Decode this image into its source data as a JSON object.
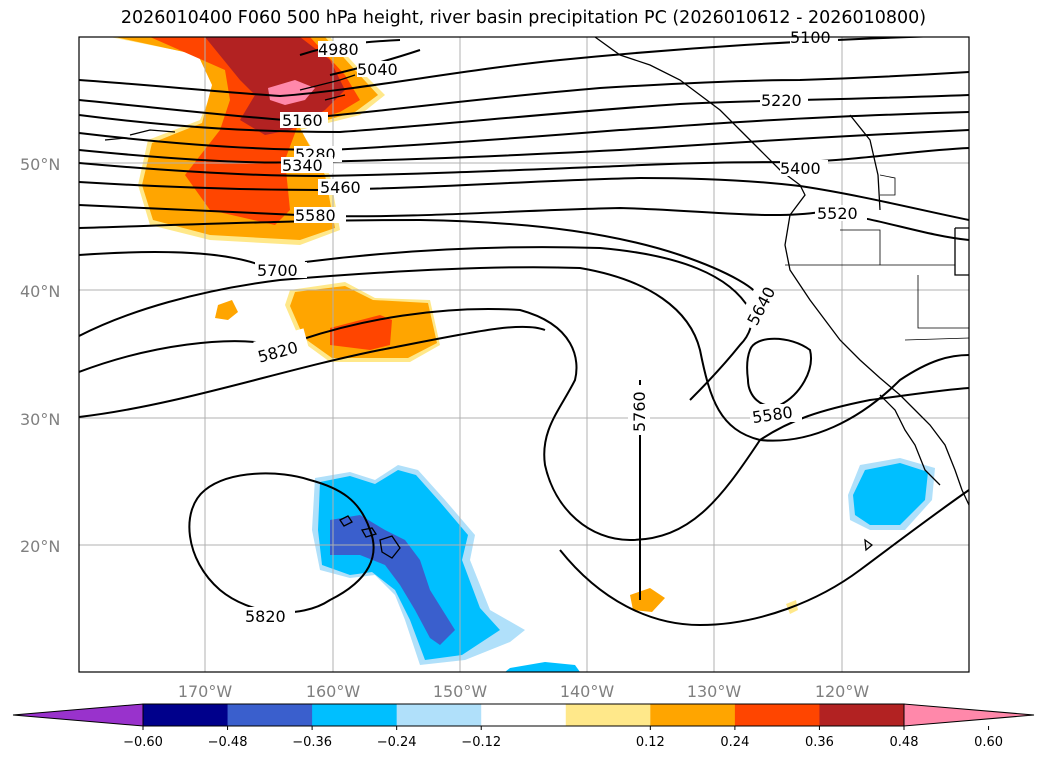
{
  "title": "2026010400 F060 500 hPa height, river basin precipitation PC (2026010612 - 2026010800)",
  "lat_labels": [
    "50°N",
    "40°N",
    "30°N",
    "20°N"
  ],
  "lon_labels": [
    "170°W",
    "160°W",
    "150°W",
    "140°W",
    "130°W",
    "120°W"
  ],
  "contour_labels": [
    "4980",
    "5040",
    "5100",
    "5160",
    "5220",
    "5280",
    "5340",
    "5400",
    "5460",
    "5520",
    "5580",
    "5640",
    "5700",
    "5760",
    "5820",
    "5580",
    "5820"
  ],
  "colorbar": {
    "ticks": [
      "−0.60",
      "−0.48",
      "−0.36",
      "−0.24",
      "−0.12",
      "0.12",
      "0.24",
      "0.36",
      "0.48",
      "0.60"
    ],
    "colors": [
      "#9932cc",
      "#00008b",
      "#3a5fcd",
      "#00bfff",
      "#b0e0fa",
      "#ffffff",
      "#ffe88a",
      "#ffa500",
      "#ff4500",
      "#b22222",
      "#ff88aa"
    ]
  },
  "colors": {
    "frame": "#000000",
    "grid": "#b0b0b0",
    "contour": "#000000"
  }
}
